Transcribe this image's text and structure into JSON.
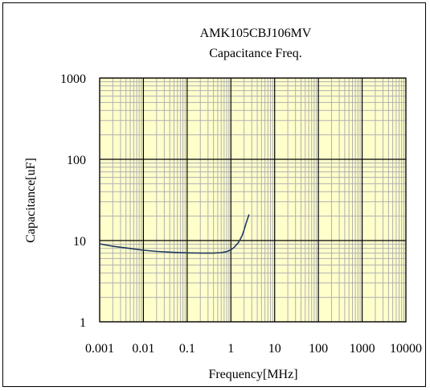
{
  "chart_data": {
    "type": "line",
    "title": "AMK105CBJ106MV",
    "subtitle": "Capacitance Freq.",
    "xlabel": "Frequency[MHz]",
    "ylabel": "Capacitance[uF]",
    "x_scale": "log",
    "y_scale": "log",
    "xlim": [
      0.001,
      10000
    ],
    "ylim": [
      1,
      1000
    ],
    "x_tick_labels": [
      "0.001",
      "0.01",
      "0.1",
      "1",
      "10",
      "100",
      "1000",
      "10000"
    ],
    "y_tick_labels": [
      "1",
      "10",
      "100",
      "1000"
    ],
    "grid": true,
    "plot_background": "#ffffcc",
    "minor_grid_color": "#b0b0b0",
    "major_grid_color": "#000000",
    "series": [
      {
        "color": "#1f3a5f",
        "x": [
          0.001,
          0.002,
          0.005,
          0.01,
          0.02,
          0.05,
          0.1,
          0.2,
          0.4,
          0.6,
          0.8,
          1.0,
          1.2,
          1.5,
          1.8,
          2.0,
          2.2,
          2.4,
          2.6
        ],
        "y": [
          9.1,
          8.5,
          8.0,
          7.6,
          7.35,
          7.15,
          7.05,
          7.0,
          7.0,
          7.1,
          7.3,
          7.7,
          8.3,
          9.5,
          11.5,
          13.5,
          16.0,
          18.5,
          21.0
        ]
      }
    ]
  }
}
